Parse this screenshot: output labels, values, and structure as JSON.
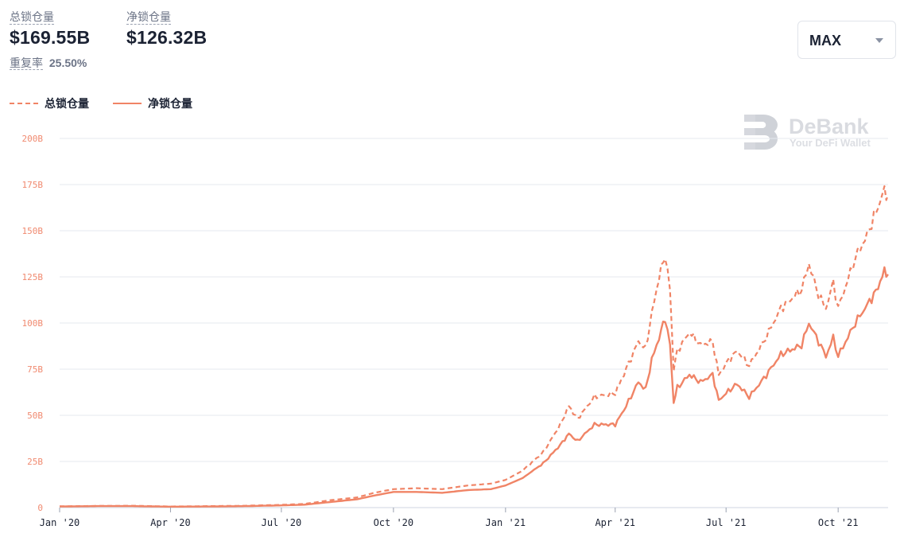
{
  "header": {
    "total_label": "总锁仓量",
    "total_value": "$169.55B",
    "net_label": "净锁仓量",
    "net_value": "$126.32B",
    "overlap_label": "重复率",
    "overlap_value": "25.50%"
  },
  "range_select": {
    "value": "MAX",
    "icon": "chevron-down-icon"
  },
  "watermark": {
    "title": "DeBank",
    "subtitle": "Your DeFi Wallet"
  },
  "colors": {
    "series": "#f08466",
    "grid": "#e6e9ef",
    "tick_label": "#f08a70",
    "axis_label": "#1b2233"
  },
  "chart_data": {
    "type": "line",
    "ylim": [
      0,
      200
    ],
    "y_ticks": [
      0,
      25,
      50,
      75,
      100,
      125,
      150,
      175,
      200
    ],
    "y_tick_labels": [
      "0",
      "25B",
      "50B",
      "75B",
      "100B",
      "125B",
      "150B",
      "175B",
      "200B"
    ],
    "x_range": [
      "2020-01-01",
      "2021-11-11"
    ],
    "x_ticks": [
      "2020-01-01",
      "2020-04-01",
      "2020-07-01",
      "2020-10-01",
      "2021-01-01",
      "2021-04-01",
      "2021-07-01",
      "2021-10-01"
    ],
    "x_tick_labels": [
      "Jan '20",
      "Apr '20",
      "Jul '20",
      "Oct '20",
      "Jan '21",
      "Apr '21",
      "Jul '21",
      "Oct '21"
    ],
    "grid": true,
    "legend_position": "top-left",
    "series": [
      {
        "name": "总锁仓量",
        "style": "dashed",
        "points": [
          [
            "2020-01-01",
            0.7
          ],
          [
            "2020-02-01",
            0.9
          ],
          [
            "2020-03-01",
            1.0
          ],
          [
            "2020-04-01",
            0.6
          ],
          [
            "2020-05-01",
            0.8
          ],
          [
            "2020-06-01",
            1.0
          ],
          [
            "2020-07-01",
            1.5
          ],
          [
            "2020-07-20",
            2.0
          ],
          [
            "2020-08-10",
            4.0
          ],
          [
            "2020-09-01",
            5.5
          ],
          [
            "2020-09-15",
            8.0
          ],
          [
            "2020-10-01",
            10.0
          ],
          [
            "2020-10-20",
            10.5
          ],
          [
            "2020-11-10",
            10.0
          ],
          [
            "2020-12-01",
            12.0
          ],
          [
            "2020-12-20",
            13.0
          ],
          [
            "2021-01-01",
            15.0
          ],
          [
            "2021-01-15",
            20.0
          ],
          [
            "2021-02-01",
            30.0
          ],
          [
            "2021-02-15",
            45.0
          ],
          [
            "2021-02-22",
            55.0
          ],
          [
            "2021-03-01",
            48.0
          ],
          [
            "2021-03-15",
            60.0
          ],
          [
            "2021-04-01",
            62.0
          ],
          [
            "2021-04-10",
            75.0
          ],
          [
            "2021-04-20",
            90.0
          ],
          [
            "2021-04-26",
            86.0
          ],
          [
            "2021-05-01",
            105.0
          ],
          [
            "2021-05-07",
            125.0
          ],
          [
            "2021-05-12",
            137.0
          ],
          [
            "2021-05-16",
            118.0
          ],
          [
            "2021-05-19",
            75.0
          ],
          [
            "2021-05-22",
            85.0
          ],
          [
            "2021-06-01",
            95.0
          ],
          [
            "2021-06-10",
            88.0
          ],
          [
            "2021-06-20",
            90.0
          ],
          [
            "2021-06-25",
            72.0
          ],
          [
            "2021-07-01",
            78.0
          ],
          [
            "2021-07-10",
            85.0
          ],
          [
            "2021-07-20",
            77.0
          ],
          [
            "2021-08-01",
            90.0
          ],
          [
            "2021-08-15",
            108.0
          ],
          [
            "2021-09-01",
            118.0
          ],
          [
            "2021-09-07",
            132.0
          ],
          [
            "2021-09-15",
            115.0
          ],
          [
            "2021-09-21",
            108.0
          ],
          [
            "2021-09-27",
            122.0
          ],
          [
            "2021-10-01",
            108.0
          ],
          [
            "2021-10-15",
            135.0
          ],
          [
            "2021-10-25",
            148.0
          ],
          [
            "2021-11-01",
            160.0
          ],
          [
            "2021-11-08",
            172.0
          ],
          [
            "2021-11-11",
            169.55
          ]
        ]
      },
      {
        "name": "净锁仓量",
        "style": "solid",
        "points": [
          [
            "2020-01-01",
            0.6
          ],
          [
            "2020-02-01",
            0.8
          ],
          [
            "2020-03-01",
            0.8
          ],
          [
            "2020-04-01",
            0.5
          ],
          [
            "2020-05-01",
            0.6
          ],
          [
            "2020-06-01",
            0.8
          ],
          [
            "2020-07-01",
            1.2
          ],
          [
            "2020-07-20",
            1.6
          ],
          [
            "2020-08-10",
            3.0
          ],
          [
            "2020-09-01",
            4.5
          ],
          [
            "2020-09-15",
            6.5
          ],
          [
            "2020-10-01",
            8.5
          ],
          [
            "2020-10-20",
            8.5
          ],
          [
            "2020-11-10",
            8.0
          ],
          [
            "2020-12-01",
            9.5
          ],
          [
            "2020-12-20",
            10.0
          ],
          [
            "2021-01-01",
            12.0
          ],
          [
            "2021-01-15",
            16.0
          ],
          [
            "2021-02-01",
            24.0
          ],
          [
            "2021-02-15",
            34.0
          ],
          [
            "2021-02-22",
            40.0
          ],
          [
            "2021-03-01",
            36.0
          ],
          [
            "2021-03-15",
            45.0
          ],
          [
            "2021-04-01",
            45.0
          ],
          [
            "2021-04-10",
            55.0
          ],
          [
            "2021-04-20",
            68.0
          ],
          [
            "2021-04-26",
            64.0
          ],
          [
            "2021-05-01",
            80.0
          ],
          [
            "2021-05-07",
            92.0
          ],
          [
            "2021-05-12",
            103.0
          ],
          [
            "2021-05-16",
            88.0
          ],
          [
            "2021-05-19",
            57.0
          ],
          [
            "2021-05-22",
            65.0
          ],
          [
            "2021-06-01",
            72.0
          ],
          [
            "2021-06-10",
            68.0
          ],
          [
            "2021-06-20",
            72.0
          ],
          [
            "2021-06-25",
            58.0
          ],
          [
            "2021-07-01",
            62.0
          ],
          [
            "2021-07-10",
            67.0
          ],
          [
            "2021-07-20",
            60.0
          ],
          [
            "2021-08-01",
            70.0
          ],
          [
            "2021-08-15",
            83.0
          ],
          [
            "2021-09-01",
            88.0
          ],
          [
            "2021-09-07",
            100.0
          ],
          [
            "2021-09-15",
            90.0
          ],
          [
            "2021-09-21",
            82.0
          ],
          [
            "2021-09-27",
            92.0
          ],
          [
            "2021-10-01",
            82.0
          ],
          [
            "2021-10-15",
            100.0
          ],
          [
            "2021-10-25",
            110.0
          ],
          [
            "2021-11-01",
            117.0
          ],
          [
            "2021-11-08",
            128.0
          ],
          [
            "2021-11-11",
            126.32
          ]
        ]
      }
    ]
  }
}
